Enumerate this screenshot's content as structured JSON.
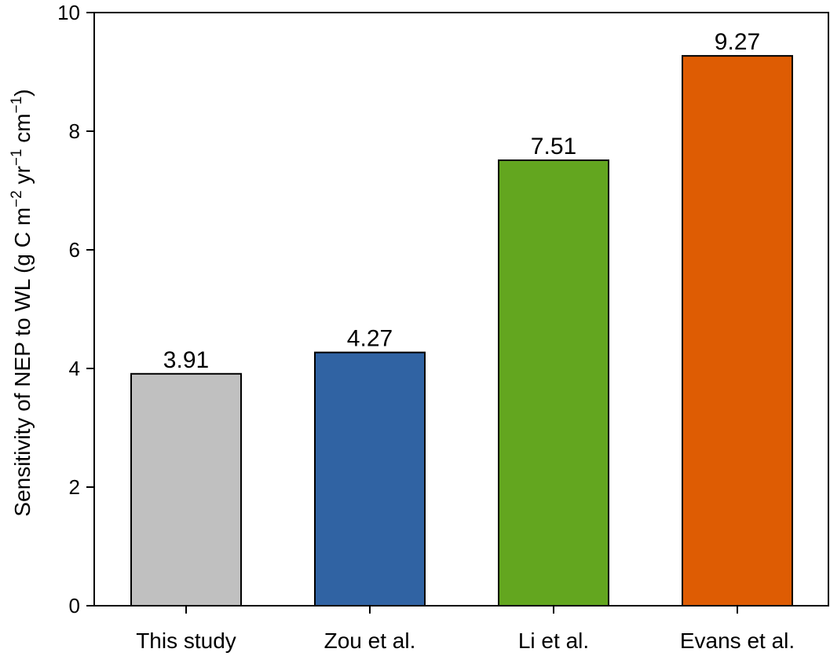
{
  "chart_data": {
    "type": "bar",
    "categories": [
      "This study",
      "Zou et al.",
      "Li et al.",
      "Evans et al."
    ],
    "values": [
      3.91,
      4.27,
      7.51,
      9.27
    ],
    "data_labels": [
      "3.91",
      "4.27",
      "7.51",
      "9.27"
    ],
    "colors": [
      "#c0c0c0",
      "#3063a3",
      "#63a61f",
      "#de5c03"
    ],
    "title": "",
    "xlabel": "",
    "ylabel": {
      "main": "Sensitivity of NEP to WL (g C m",
      "sup1": "−2",
      "mid1": " yr",
      "sup2": "−1",
      "mid2": " cm",
      "sup3": "−1",
      "end": ")"
    },
    "ylim": [
      0,
      10
    ],
    "yticks": [
      0,
      2,
      4,
      6,
      8,
      10
    ],
    "ytick_labels": [
      "0",
      "2",
      "4",
      "6",
      "8",
      "10"
    ],
    "grid": false,
    "legend": "none"
  }
}
